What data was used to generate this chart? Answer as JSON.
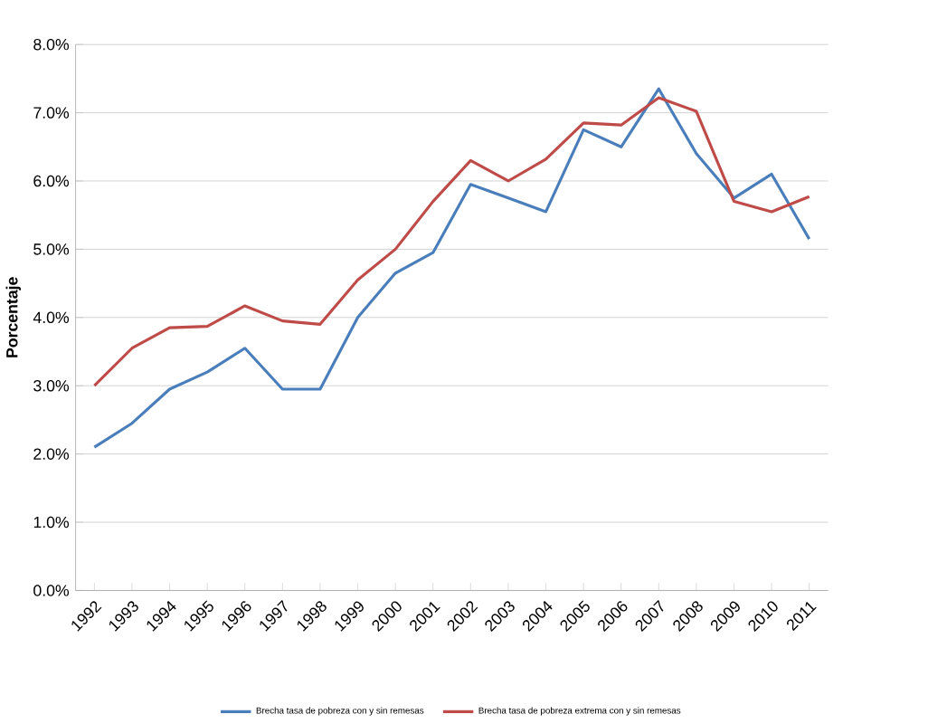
{
  "chart_data": {
    "type": "line",
    "ylabel": "Porcentaje",
    "categories": [
      "1992",
      "1993",
      "1994",
      "1995",
      "1996",
      "1997",
      "1998",
      "1999",
      "2000",
      "2001",
      "2002",
      "2003",
      "2004",
      "2005",
      "2006",
      "2007",
      "2008",
      "2009",
      "2010",
      "2011"
    ],
    "series": [
      {
        "name": "Brecha tasa de pobreza con y sin remesas",
        "color": "#4a7ebb",
        "values": [
          2.1,
          2.45,
          2.95,
          3.2,
          3.55,
          2.95,
          2.95,
          4.0,
          4.65,
          4.95,
          5.95,
          5.75,
          5.55,
          6.75,
          6.5,
          7.35,
          6.4,
          5.75,
          6.1,
          5.15
        ]
      },
      {
        "name": "Brecha tasa de pobreza extrema con y sin remesas",
        "color": "#be4b48",
        "values": [
          3.0,
          3.55,
          3.85,
          3.87,
          4.17,
          3.95,
          3.9,
          4.55,
          5.0,
          5.7,
          6.3,
          6.0,
          6.32,
          6.85,
          6.82,
          7.22,
          7.02,
          5.7,
          5.55,
          5.77
        ]
      }
    ],
    "ylim": [
      0,
      8
    ],
    "yticks": [
      {
        "value": 0,
        "label": "0.0%"
      },
      {
        "value": 1,
        "label": "1.0%"
      },
      {
        "value": 2,
        "label": "2.0%"
      },
      {
        "value": 3,
        "label": "3.0%"
      },
      {
        "value": 4,
        "label": "4.0%"
      },
      {
        "value": 5,
        "label": "5.0%"
      },
      {
        "value": 6,
        "label": "6.0%"
      },
      {
        "value": 7,
        "label": "7.0%"
      },
      {
        "value": 8,
        "label": "8.0%"
      }
    ],
    "grid": "y",
    "legend": "bottom",
    "marker": "none",
    "line_style": "solid"
  }
}
